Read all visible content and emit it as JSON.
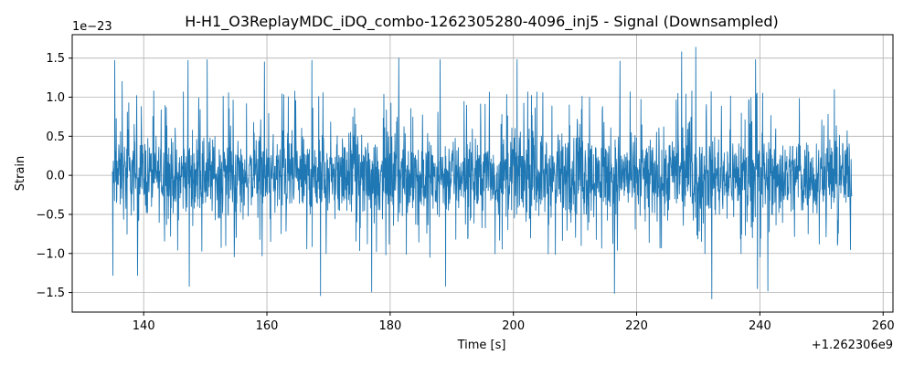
{
  "chart_data": {
    "type": "line",
    "title": "H-H1_O3ReplayMDC_iDQ_combo-1262305280-4096_inj5 - Signal (Downsampled)",
    "xlabel": "Time [s]",
    "ylabel": "Strain",
    "x_offset_label": "+1.262306e9",
    "y_scale_label": "1e−23",
    "xlim": [
      128.4,
      261.6
    ],
    "ylim": [
      -1.75,
      1.8
    ],
    "x_range": [
      134.9,
      254.9
    ],
    "x_ticks": [
      140,
      160,
      180,
      200,
      220,
      240,
      260
    ],
    "x_tick_labels": [
      "140",
      "160",
      "180",
      "200",
      "220",
      "240",
      "260"
    ],
    "y_ticks": [
      -1.5,
      -1.0,
      -0.5,
      0.0,
      0.5,
      1.0,
      1.5
    ],
    "y_tick_labels": [
      "−1.5",
      "−1.0",
      "−0.5",
      "0.0",
      "0.5",
      "1.0",
      "1.5"
    ],
    "grid": true,
    "line_color": "#1f77b4",
    "series": [
      {
        "values_description": "noise-like strain signal, typically between -0.6 and 0.6 (x1e-23)",
        "envelope": {
          "typical_max": 0.6,
          "typical_min": -0.55
        },
        "peaks": [
          {
            "x": 135.3,
            "y": 1.47
          },
          {
            "x": 136.5,
            "y": 1.2
          },
          {
            "x": 147.2,
            "y": 1.47
          },
          {
            "x": 150.3,
            "y": 1.48
          },
          {
            "x": 159.6,
            "y": 1.45
          },
          {
            "x": 167.3,
            "y": 1.47
          },
          {
            "x": 181.4,
            "y": 1.5
          },
          {
            "x": 188.1,
            "y": 1.48
          },
          {
            "x": 200.6,
            "y": 1.48
          },
          {
            "x": 217.3,
            "y": 1.46
          },
          {
            "x": 227.3,
            "y": 1.58
          },
          {
            "x": 229.6,
            "y": 1.64
          },
          {
            "x": 239.3,
            "y": 1.48
          },
          {
            "x": 254.7,
            "y": 1.37
          }
        ],
        "troughs": [
          {
            "x": 135.0,
            "y": -1.28
          },
          {
            "x": 139.0,
            "y": -1.28
          },
          {
            "x": 147.4,
            "y": -1.42
          },
          {
            "x": 168.7,
            "y": -1.54
          },
          {
            "x": 177.0,
            "y": -1.49
          },
          {
            "x": 189.0,
            "y": -1.42
          },
          {
            "x": 216.4,
            "y": -1.51
          },
          {
            "x": 232.2,
            "y": -1.58
          },
          {
            "x": 239.6,
            "y": -1.45
          },
          {
            "x": 241.3,
            "y": -1.48
          },
          {
            "x": 254.7,
            "y": -0.95
          }
        ]
      }
    ]
  }
}
